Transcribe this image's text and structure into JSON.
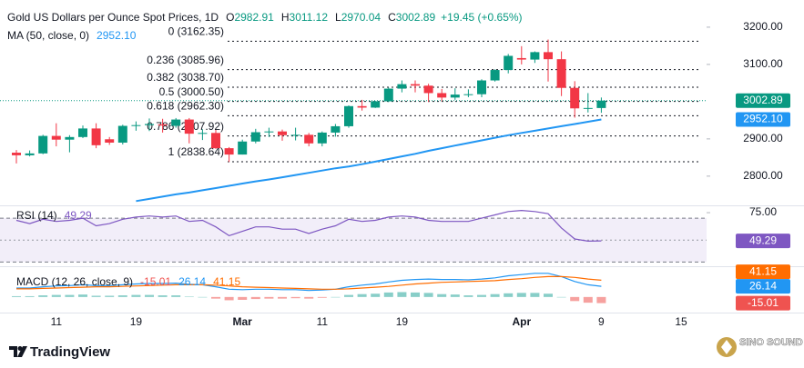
{
  "chart_data": [
    {
      "type": "candlestick",
      "title": "Gold US Dollars per Ounce Spot Prices, 1D",
      "ohlc_keys": [
        "O",
        "H",
        "L",
        "C"
      ],
      "change": "+19.45 (+0.65%)",
      "categories": [
        null,
        null,
        null,
        "11",
        null,
        null,
        null,
        null,
        null,
        "19",
        null,
        null,
        null,
        null,
        null,
        null,
        null,
        "Mar",
        null,
        null,
        null,
        null,
        null,
        "11",
        null,
        null,
        null,
        null,
        null,
        "19",
        null,
        null,
        null,
        null,
        null,
        null,
        null,
        null,
        "Apr",
        null,
        null,
        null,
        null,
        null,
        "9",
        null,
        null,
        null,
        null,
        null,
        "15"
      ],
      "open": [
        2863,
        2856,
        2861,
        2908,
        2898,
        2905,
        2928,
        2899,
        2890,
        2935,
        2937,
        2939,
        2935,
        2952,
        2914,
        2916,
        2875,
        2858,
        2893,
        2918,
        2920,
        2910,
        2911,
        2888,
        2917,
        2934,
        2988,
        2984,
        3001,
        3035,
        3047,
        3043,
        3023,
        3011,
        3018,
        3020,
        3057,
        3085,
        3117,
        3113,
        3133,
        3114,
        3037,
        2982,
        2982.91,
        null,
        null,
        null,
        null,
        null,
        null
      ],
      "high": [
        2870,
        2869,
        2911,
        2942,
        2910,
        2936,
        2942,
        2905,
        2938,
        2947,
        2955,
        2954,
        2956,
        2956,
        2926,
        2924,
        2878,
        2898,
        2927,
        2930,
        2925,
        2930,
        2916,
        2920,
        2940,
        2990,
        3005,
        3002,
        3038,
        3057,
        3057,
        3048,
        3034,
        3036,
        3033,
        3060,
        3087,
        3128,
        3149,
        3135,
        3167,
        3135,
        3055,
        3023,
        3011.12,
        null,
        null,
        null,
        null,
        null,
        null
      ],
      "low": [
        2834,
        2853,
        2859,
        2880,
        2864,
        2902,
        2875,
        2884,
        2885,
        2922,
        2921,
        2917,
        2930,
        2888,
        2897,
        2873,
        2838,
        2858,
        2888,
        2905,
        2895,
        2896,
        2880,
        2880,
        2906,
        2930,
        2976,
        2983,
        2999,
        3025,
        3025,
        2999,
        3001,
        3005,
        3012,
        3012,
        3054,
        3076,
        3100,
        3104,
        3054,
        3015,
        2957,
        2971,
        2970.04,
        null,
        null,
        null,
        null,
        null,
        null
      ],
      "close": [
        2856,
        2861,
        2908,
        2898,
        2905,
        2928,
        2883,
        2890,
        2935,
        2937,
        2940,
        2936,
        2952,
        2914,
        2916,
        2875,
        2858,
        2893,
        2918,
        2920,
        2910,
        2911,
        2888,
        2917,
        2934,
        2988,
        2984,
        3001,
        3035,
        3047,
        3043,
        3023,
        3011,
        3019,
        3020,
        3057,
        3085,
        3123,
        3113,
        3133,
        3114,
        3037,
        2982,
        2983,
        3002.89,
        null,
        null,
        null,
        null,
        null,
        null
      ],
      "up_color": "#089981",
      "down_color": "#f23645",
      "overlay": {
        "name": "MA (50, close, 0)",
        "color": "#2196f3",
        "values": [
          null,
          null,
          null,
          null,
          null,
          null,
          null,
          null,
          null,
          2733,
          2739,
          2745,
          2751,
          2756,
          2762,
          2768,
          2774,
          2780,
          2786,
          2791,
          2797,
          2803,
          2809,
          2815,
          2821,
          2826,
          2832,
          2839,
          2846,
          2853,
          2860,
          2868,
          2875,
          2882,
          2889,
          2896,
          2903,
          2910,
          2916,
          2922,
          2928,
          2934,
          2940,
          2946,
          2952.1,
          null,
          null,
          null,
          null,
          null,
          null
        ],
        "value_labels": [
          null,
          null,
          null,
          null,
          null,
          null,
          null,
          null,
          null,
          null,
          null,
          null,
          null,
          null,
          null,
          null,
          null,
          null,
          null,
          null,
          null,
          null,
          null,
          null,
          null,
          null,
          null,
          null,
          null,
          null,
          null,
          null,
          null,
          null,
          null,
          null,
          null,
          null,
          null,
          null,
          null,
          null,
          null,
          null,
          "2952.10",
          null,
          null,
          null,
          null,
          null,
          null
        ]
      },
      "fib_levels": [
        {
          "value": 3162.35,
          "label": "0 (3162.35)"
        },
        {
          "value": 3085.96,
          "label": "0.236 (3085.96)"
        },
        {
          "value": 3038.7,
          "label": "0.382 (3038.70)"
        },
        {
          "value": 3000.5,
          "label": "0.5 (3000.50)"
        },
        {
          "value": 2962.3,
          "label": "0.618 (2962.30)"
        },
        {
          "value": 2907.92,
          "label": "0.786 (2907.92)"
        },
        {
          "value": 2838.64,
          "label": "1 (2838.64)"
        }
      ],
      "ylim": [
        2724,
        3273
      ],
      "yticks": [
        {
          "value": 3200,
          "label": "3200.00"
        },
        {
          "value": 3100,
          "label": "3100.00"
        },
        {
          "value": 2900,
          "label": "2900.00"
        },
        {
          "value": 2800,
          "label": "2800.00"
        }
      ]
    },
    {
      "type": "rsi",
      "name": "RSI (14)",
      "color": "#7e57c2",
      "values": [
        68,
        65,
        69,
        67,
        68,
        70,
        63,
        65,
        69,
        71,
        72,
        71,
        72,
        67,
        68,
        62,
        54,
        58,
        62,
        62,
        60,
        60,
        56,
        60,
        63,
        69,
        67,
        68,
        71,
        72,
        71,
        68,
        67,
        67,
        67,
        70,
        73,
        76,
        77,
        76,
        74,
        61,
        51,
        49,
        49.29,
        null,
        null,
        null,
        null,
        null,
        null
      ],
      "band": [
        30,
        70
      ],
      "midline": 50,
      "ylim": [
        27,
        80
      ],
      "yticks": [
        {
          "value": 75,
          "label": "75.00"
        }
      ]
    },
    {
      "type": "macd",
      "name": "MACD (12, 26, close, 9)",
      "histogram": {
        "positive_color": "#26a69a",
        "negative_color": "#ef5350",
        "values": [
          2,
          2,
          4,
          5,
          5,
          6,
          3,
          3,
          4,
          5,
          5,
          4,
          4,
          1,
          0,
          -4,
          -8,
          -7,
          -5,
          -4,
          -4,
          -3,
          -4,
          -2,
          0,
          5,
          7,
          8,
          11,
          12,
          11,
          10,
          7,
          6,
          4,
          5,
          7,
          9,
          10,
          10,
          8,
          0,
          -10,
          -14,
          -15.01,
          null,
          null,
          null,
          null,
          null,
          null
        ]
      },
      "macd": {
        "color": "#2196f3",
        "values": [
          22,
          22,
          25,
          27,
          28,
          30,
          28,
          28,
          30,
          32,
          33,
          33,
          34,
          31,
          30,
          25,
          19,
          18,
          19,
          19,
          18,
          18,
          16,
          17,
          19,
          25,
          29,
          32,
          37,
          41,
          43,
          44,
          43,
          43,
          42,
          44,
          47,
          52,
          55,
          58,
          58,
          50,
          38,
          30,
          26.14,
          null,
          null,
          null,
          null,
          null,
          null
        ]
      },
      "signal": {
        "color": "#ff6d00",
        "values": [
          20,
          20,
          21,
          22,
          23,
          24,
          25,
          25,
          26,
          27,
          28,
          29,
          30,
          30,
          30,
          29,
          27,
          25,
          24,
          23,
          22,
          21,
          20,
          19,
          19,
          20,
          22,
          24,
          26,
          29,
          32,
          34,
          36,
          37,
          38,
          39,
          40,
          43,
          45,
          48,
          50,
          50,
          48,
          44,
          41.15,
          null,
          null,
          null,
          null,
          null,
          null
        ]
      },
      "ylim": [
        -36,
        71
      ]
    }
  ],
  "footer": {
    "brand": "TradingView",
    "watermark": "SINO SOUND"
  }
}
